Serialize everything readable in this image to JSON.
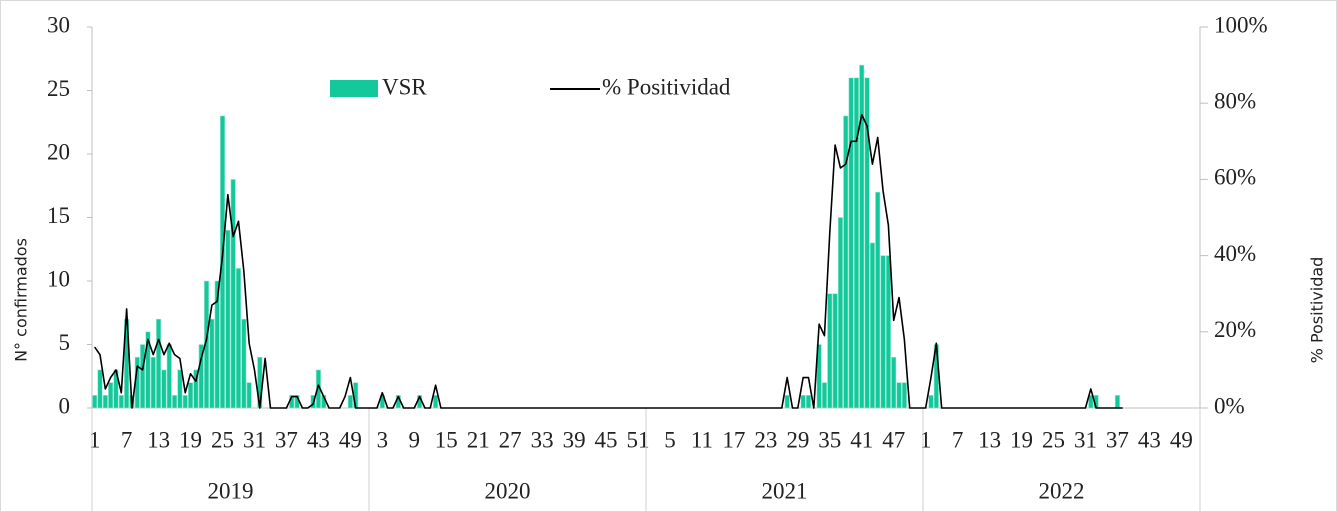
{
  "chart_data": {
    "type": "bar_line",
    "y_label": "N° confirmados",
    "y2_label": "% Positividad",
    "categories": [
      "1",
      null,
      null,
      null,
      null,
      null,
      "7",
      null,
      null,
      null,
      null,
      null,
      "13",
      null,
      null,
      null,
      null,
      null,
      "19",
      null,
      null,
      null,
      null,
      null,
      "25",
      null,
      null,
      null,
      null,
      null,
      "31",
      null,
      null,
      null,
      null,
      null,
      "37",
      null,
      null,
      null,
      null,
      null,
      "43",
      null,
      null,
      null,
      null,
      null,
      "49",
      null,
      null,
      null,
      null,
      null,
      "3",
      null,
      null,
      null,
      null,
      null,
      "9",
      null,
      null,
      null,
      null,
      null,
      "15",
      null,
      null,
      null,
      null,
      null,
      "21",
      null,
      null,
      null,
      null,
      null,
      "27",
      null,
      null,
      null,
      null,
      null,
      "33",
      null,
      null,
      null,
      null,
      null,
      "39",
      null,
      null,
      null,
      null,
      null,
      "45",
      null,
      null,
      null,
      null,
      null,
      "51",
      null,
      null,
      null,
      null,
      null,
      "5",
      null,
      null,
      null,
      null,
      null,
      "11",
      null,
      null,
      null,
      null,
      null,
      "17",
      null,
      null,
      null,
      null,
      null,
      "23",
      null,
      null,
      null,
      null,
      null,
      "29",
      null,
      null,
      null,
      null,
      null,
      "35",
      null,
      null,
      null,
      null,
      null,
      "41",
      null,
      null,
      null,
      null,
      null,
      "47",
      null,
      null,
      null,
      null,
      null,
      "1",
      null,
      null,
      null,
      null,
      null,
      "7",
      null,
      null,
      null,
      null,
      null,
      "13",
      null,
      null,
      null,
      null,
      null,
      "19",
      null,
      null,
      null,
      null,
      null,
      "25",
      null,
      null,
      null,
      null,
      null,
      "31",
      null,
      null,
      null,
      null,
      null,
      "37",
      null,
      null,
      null,
      null,
      null,
      "43",
      null,
      null,
      null,
      null,
      null,
      "49",
      null,
      null,
      null
    ],
    "groups": [
      "2019",
      "2020",
      "2021",
      "2022"
    ],
    "series": [
      {
        "name": "VSR",
        "color": "#13c99b",
        "values": [
          1,
          3,
          1,
          2,
          3,
          1,
          7,
          1,
          4,
          5,
          6,
          4,
          7,
          3,
          5,
          1,
          3,
          1,
          2,
          3,
          5,
          10,
          7,
          10,
          23,
          14,
          18,
          11,
          7,
          2,
          0,
          4,
          0,
          0,
          0,
          0,
          0,
          1,
          1,
          0,
          0,
          1,
          3,
          1,
          0,
          0,
          0,
          0,
          1,
          2,
          0,
          0,
          0,
          0,
          1,
          0,
          0,
          1,
          0,
          0,
          0,
          1,
          0,
          0,
          1,
          0,
          0,
          0,
          0,
          0,
          0,
          0,
          0,
          0,
          0,
          0,
          0,
          0,
          0,
          0,
          0,
          0,
          0,
          0,
          0,
          0,
          0,
          0,
          0,
          0,
          0,
          0,
          0,
          0,
          0,
          0,
          0,
          0,
          0,
          0,
          0,
          0,
          0,
          0,
          0,
          0,
          0,
          0,
          0,
          0,
          0,
          0,
          0,
          0,
          0,
          0,
          0,
          0,
          0,
          0,
          0,
          0,
          0,
          0,
          0,
          0,
          0,
          0,
          0,
          0,
          1,
          0,
          0,
          1,
          1,
          0,
          5,
          2,
          9,
          9,
          15,
          23,
          26,
          26,
          27,
          26,
          13,
          17,
          12,
          12,
          4,
          2,
          2,
          0,
          0,
          0,
          0,
          1,
          5,
          0,
          0,
          0,
          0,
          0,
          0,
          0,
          0,
          0,
          0,
          0,
          0,
          0,
          0,
          0,
          0,
          0,
          0,
          0,
          0,
          0,
          0,
          0,
          0,
          0,
          0,
          0,
          0,
          1,
          1,
          0,
          0,
          0,
          1,
          0,
          null,
          null,
          null,
          null,
          null,
          null,
          null,
          null,
          null,
          null,
          null,
          null,
          null,
          null
        ]
      },
      {
        "name": "% Positividad",
        "color": "#000000",
        "axis": "y2",
        "values": [
          16,
          14,
          5,
          8,
          10,
          4,
          26,
          0,
          11,
          10,
          18,
          14,
          18,
          14,
          17,
          14,
          13,
          4,
          9,
          7,
          13,
          18,
          27,
          28,
          40,
          56,
          45,
          49,
          36,
          17,
          10,
          0,
          13,
          0,
          0,
          0,
          0,
          3,
          3,
          0,
          0,
          1,
          6,
          3,
          0,
          0,
          0,
          3,
          8,
          0,
          0,
          0,
          0,
          0,
          4,
          0,
          0,
          3,
          0,
          0,
          0,
          3,
          0,
          0,
          6,
          0,
          0,
          0,
          0,
          0,
          0,
          0,
          0,
          0,
          0,
          0,
          0,
          0,
          0,
          0,
          0,
          0,
          0,
          0,
          0,
          0,
          0,
          0,
          0,
          0,
          0,
          0,
          0,
          0,
          0,
          0,
          0,
          0,
          0,
          0,
          0,
          0,
          0,
          0,
          0,
          0,
          0,
          0,
          0,
          0,
          0,
          0,
          0,
          0,
          0,
          0,
          0,
          0,
          0,
          0,
          0,
          0,
          0,
          0,
          0,
          0,
          0,
          0,
          0,
          0,
          8,
          0,
          0,
          8,
          8,
          0,
          22,
          19,
          46,
          69,
          63,
          64,
          70,
          70,
          77,
          74,
          64,
          71,
          57,
          48,
          23,
          29,
          18,
          0,
          0,
          0,
          0,
          8,
          17,
          0,
          0,
          0,
          0,
          0,
          0,
          0,
          0,
          0,
          0,
          0,
          0,
          0,
          0,
          0,
          0,
          0,
          0,
          0,
          0,
          0,
          0,
          0,
          0,
          0,
          0,
          0,
          0,
          5,
          0,
          0,
          0,
          0,
          0,
          0,
          null,
          null,
          null,
          null,
          null,
          null,
          null,
          null,
          null,
          null,
          null,
          null,
          null,
          null
        ]
      }
    ],
    "ylim": [
      0,
      30
    ],
    "yticks": [
      0,
      5,
      10,
      15,
      20,
      25,
      30
    ],
    "y2lim": [
      0,
      100
    ],
    "y2ticks": [
      {
        "value": 0,
        "label": "0%"
      },
      {
        "value": 20,
        "label": "20%"
      },
      {
        "value": 40,
        "label": "40%"
      },
      {
        "value": 60,
        "label": "60%"
      },
      {
        "value": 80,
        "label": "80%"
      },
      {
        "value": 100,
        "label": "100%"
      }
    ],
    "grid": false
  }
}
